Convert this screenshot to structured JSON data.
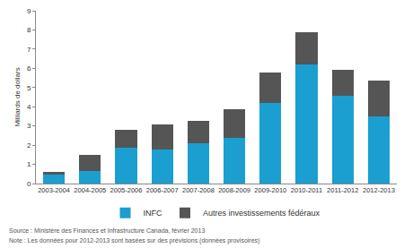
{
  "chart_data": {
    "type": "bar",
    "stacked": true,
    "ylabel": "Milliards de dollars",
    "categories": [
      "2003-2004",
      "2004-2005",
      "2005-2006",
      "2006-2007",
      "2007-2008",
      "2008-2009",
      "2009-2010",
      "2010-2011",
      "2011-2012",
      "2012-2013"
    ],
    "series": [
      {
        "name": "INFC",
        "color": "#1a9fd0",
        "values": [
          0.45,
          0.65,
          1.85,
          1.75,
          2.1,
          2.4,
          4.2,
          6.2,
          4.55,
          3.5
        ]
      },
      {
        "name": "Autres investissements fédéraux",
        "color": "#555555",
        "values": [
          0.15,
          0.85,
          0.95,
          1.35,
          1.15,
          1.45,
          1.6,
          1.7,
          1.35,
          1.85
        ]
      }
    ],
    "ylim": [
      0,
      9
    ],
    "yticks": [
      0,
      1,
      2,
      3,
      4,
      5,
      6,
      7,
      8,
      9
    ],
    "grid": false,
    "legend": "bottom",
    "annotations": [
      "Source : Ministère des Finances et Infrastructure Canada, février 2013",
      "Note : Les données pour 2012-2013 sont basées sur des prévisions (données provisoires)"
    ]
  }
}
